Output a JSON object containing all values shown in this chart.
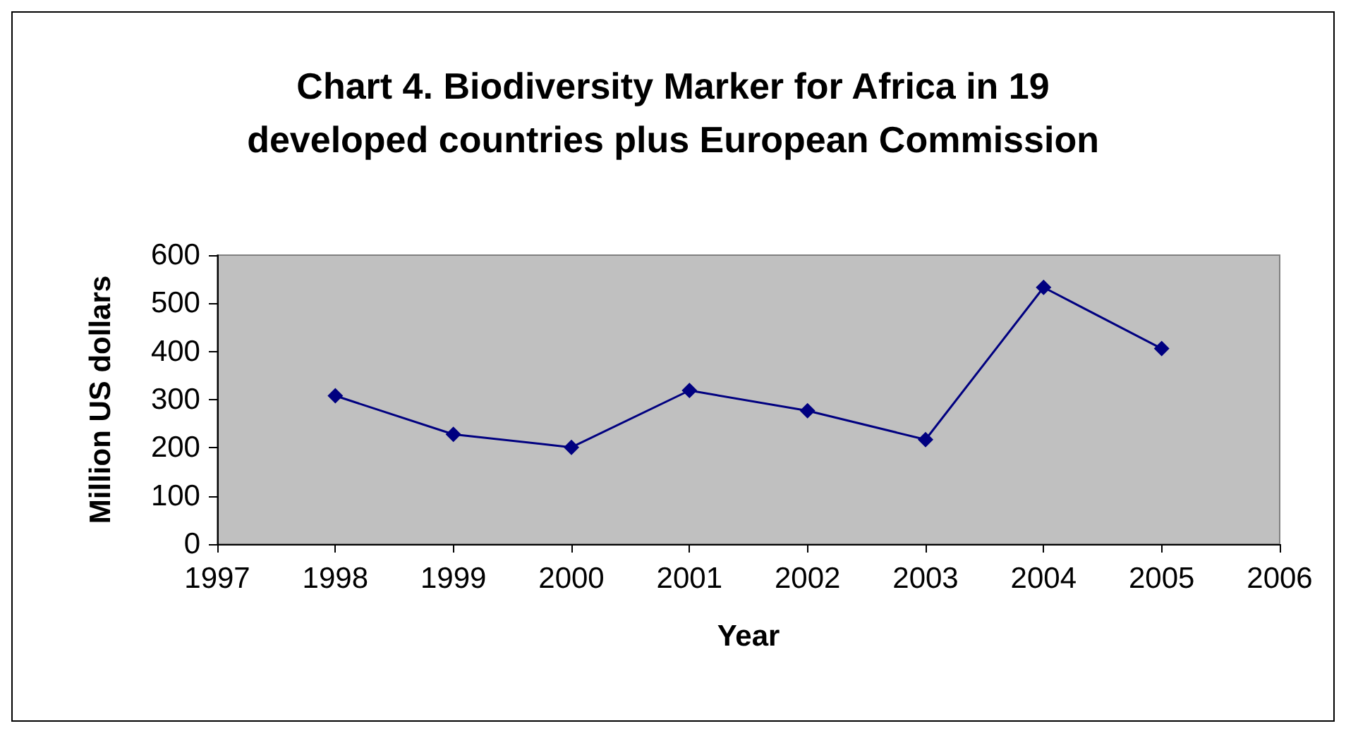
{
  "chart_data": {
    "type": "line",
    "title": "Chart 4. Biodiversity Marker for Africa in 19\ndeveloped countries plus European Commission",
    "xlabel": "Year",
    "ylabel": "Million US dollars",
    "x": [
      1998,
      1999,
      2000,
      2001,
      2002,
      2003,
      2004,
      2005
    ],
    "series": [
      {
        "color": "#000080",
        "values": [
          308,
          228,
          201,
          319,
          277,
          217,
          533,
          406
        ]
      }
    ],
    "xlim": [
      1997,
      2006
    ],
    "xticks": [
      1997,
      1998,
      1999,
      2000,
      2001,
      2002,
      2003,
      2004,
      2005,
      2006
    ],
    "ylim": [
      0,
      600
    ],
    "yticks": [
      0,
      100,
      200,
      300,
      400,
      500,
      600
    ],
    "marker": "diamond",
    "line_style": "solid"
  }
}
